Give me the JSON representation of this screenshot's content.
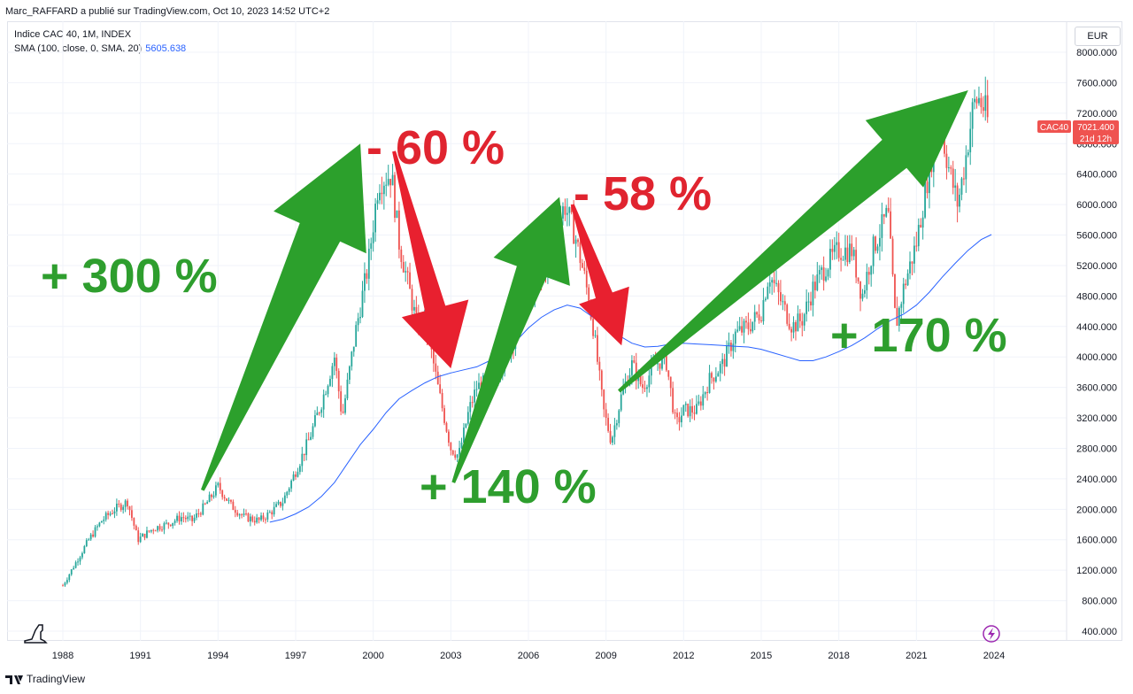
{
  "attribution": "Marc_RAFFARD a publié sur TradingView.com, Oct 10, 2023 14:52 UTC+2",
  "legend": {
    "symbol_line": "Indice CAC 40, 1M, INDEX",
    "sma_label": "SMA (100, close, 0, SMA, 20)",
    "sma_value": "5605.638"
  },
  "currency": "EUR",
  "price_tag": {
    "symbol": "CAC40",
    "price": "7021.400",
    "countdown": "21d 12h"
  },
  "footer": {
    "brand": "TradingView"
  },
  "colors": {
    "up": "#26a69a",
    "down": "#ef5350",
    "sma": "#2962ff",
    "green_arrow": "#2ca02c",
    "red_arrow": "#e8202f",
    "green_text": "#2e9e2e",
    "red_text": "#e0242f"
  },
  "annotations": {
    "rise_1": "+ 300 %",
    "fall_1": "- 60 %",
    "rise_2": "+ 140 %",
    "fall_2": "- 58 %",
    "rise_3": "+ 170 %"
  },
  "chart_data": {
    "type": "candlestick",
    "title": "",
    "ylim": [
      300,
      8200
    ],
    "xlim": [
      1987.2,
      2024.6
    ],
    "y_ticks": [
      "400.000",
      "800.000",
      "1200.000",
      "1600.000",
      "2000.000",
      "2400.000",
      "2800.000",
      "3200.000",
      "3600.000",
      "4000.000",
      "4400.000",
      "4800.000",
      "5200.000",
      "5600.000",
      "6000.000",
      "6400.000",
      "6800.000",
      "7200.000",
      "7600.000",
      "8000.000"
    ],
    "x_ticks": [
      "1988",
      "1991",
      "1994",
      "1997",
      "2000",
      "2003",
      "2006",
      "2009",
      "2012",
      "2015",
      "2018",
      "2021",
      "2024"
    ],
    "price_path": [
      [
        1988.0,
        1000
      ],
      [
        1988.5,
        1300
      ],
      [
        1989.0,
        1600
      ],
      [
        1989.5,
        1850
      ],
      [
        1990.0,
        2000
      ],
      [
        1990.5,
        2100
      ],
      [
        1990.9,
        1600
      ],
      [
        1991.5,
        1750
      ],
      [
        1992.0,
        1800
      ],
      [
        1992.6,
        1900
      ],
      [
        1993.0,
        1850
      ],
      [
        1993.5,
        2050
      ],
      [
        1994.0,
        2300
      ],
      [
        1994.5,
        2050
      ],
      [
        1995.0,
        1900
      ],
      [
        1995.6,
        1850
      ],
      [
        1996.0,
        1950
      ],
      [
        1996.5,
        2100
      ],
      [
        1997.0,
        2500
      ],
      [
        1997.5,
        2900
      ],
      [
        1998.0,
        3400
      ],
      [
        1998.5,
        4000
      ],
      [
        1998.8,
        3200
      ],
      [
        1999.3,
        4300
      ],
      [
        1999.8,
        5200
      ],
      [
        2000.2,
        6300
      ],
      [
        2000.7,
        6400
      ],
      [
        2001.0,
        5500
      ],
      [
        2001.7,
        4400
      ],
      [
        2002.0,
        4500
      ],
      [
        2002.5,
        3600
      ],
      [
        2003.0,
        2800
      ],
      [
        2003.3,
        2700
      ],
      [
        2003.7,
        3300
      ],
      [
        2004.0,
        3600
      ],
      [
        2004.5,
        3700
      ],
      [
        2005.0,
        3900
      ],
      [
        2005.5,
        4300
      ],
      [
        2006.0,
        4900
      ],
      [
        2006.5,
        5000
      ],
      [
        2007.0,
        5600
      ],
      [
        2007.4,
        6000
      ],
      [
        2007.8,
        5600
      ],
      [
        2008.2,
        5000
      ],
      [
        2008.5,
        4400
      ],
      [
        2008.9,
        3300
      ],
      [
        2009.2,
        2900
      ],
      [
        2009.6,
        3500
      ],
      [
        2010.0,
        3900
      ],
      [
        2010.4,
        3600
      ],
      [
        2010.9,
        3900
      ],
      [
        2011.3,
        4000
      ],
      [
        2011.7,
        3100
      ],
      [
        2012.0,
        3300
      ],
      [
        2012.5,
        3300
      ],
      [
        2013.0,
        3700
      ],
      [
        2013.5,
        3900
      ],
      [
        2014.0,
        4300
      ],
      [
        2014.5,
        4400
      ],
      [
        2015.0,
        4600
      ],
      [
        2015.3,
        5100
      ],
      [
        2015.8,
        4700
      ],
      [
        2016.2,
        4400
      ],
      [
        2016.6,
        4500
      ],
      [
        2017.0,
        4900
      ],
      [
        2017.5,
        5200
      ],
      [
        2018.0,
        5400
      ],
      [
        2018.5,
        5400
      ],
      [
        2018.9,
        4800
      ],
      [
        2019.3,
        5400
      ],
      [
        2019.9,
        5900
      ],
      [
        2020.2,
        4400
      ],
      [
        2020.5,
        4900
      ],
      [
        2021.0,
        5500
      ],
      [
        2021.5,
        6500
      ],
      [
        2021.9,
        7100
      ],
      [
        2022.3,
        6400
      ],
      [
        2022.6,
        6000
      ],
      [
        2022.9,
        6600
      ],
      [
        2023.2,
        7300
      ],
      [
        2023.4,
        7400
      ],
      [
        2023.7,
        7200
      ],
      [
        2023.8,
        7021
      ]
    ],
    "sma_path": [
      [
        1996.0,
        1830
      ],
      [
        1996.5,
        1870
      ],
      [
        1997.0,
        1940
      ],
      [
        1997.5,
        2030
      ],
      [
        1998.0,
        2170
      ],
      [
        1998.5,
        2350
      ],
      [
        1999.0,
        2600
      ],
      [
        1999.5,
        2850
      ],
      [
        2000.0,
        3050
      ],
      [
        2000.5,
        3270
      ],
      [
        2001.0,
        3450
      ],
      [
        2001.5,
        3560
      ],
      [
        2002.0,
        3660
      ],
      [
        2002.5,
        3740
      ],
      [
        2003.0,
        3790
      ],
      [
        2003.5,
        3830
      ],
      [
        2004.0,
        3870
      ],
      [
        2004.5,
        3950
      ],
      [
        2005.0,
        4050
      ],
      [
        2005.5,
        4200
      ],
      [
        2006.0,
        4380
      ],
      [
        2006.5,
        4520
      ],
      [
        2007.0,
        4620
      ],
      [
        2007.5,
        4680
      ],
      [
        2008.0,
        4640
      ],
      [
        2008.5,
        4520
      ],
      [
        2009.0,
        4400
      ],
      [
        2009.5,
        4280
      ],
      [
        2010.0,
        4180
      ],
      [
        2010.5,
        4130
      ],
      [
        2011.0,
        4140
      ],
      [
        2011.5,
        4170
      ],
      [
        2012.0,
        4180
      ],
      [
        2012.5,
        4170
      ],
      [
        2013.0,
        4160
      ],
      [
        2013.5,
        4150
      ],
      [
        2014.0,
        4140
      ],
      [
        2014.5,
        4130
      ],
      [
        2015.0,
        4100
      ],
      [
        2015.5,
        4050
      ],
      [
        2016.0,
        4000
      ],
      [
        2016.5,
        3950
      ],
      [
        2017.0,
        3950
      ],
      [
        2017.5,
        4000
      ],
      [
        2018.0,
        4070
      ],
      [
        2018.5,
        4150
      ],
      [
        2019.0,
        4250
      ],
      [
        2019.5,
        4370
      ],
      [
        2020.0,
        4480
      ],
      [
        2020.5,
        4560
      ],
      [
        2021.0,
        4680
      ],
      [
        2021.5,
        4850
      ],
      [
        2022.0,
        5050
      ],
      [
        2022.5,
        5230
      ],
      [
        2023.0,
        5400
      ],
      [
        2023.5,
        5540
      ],
      [
        2023.9,
        5605.638
      ]
    ]
  }
}
